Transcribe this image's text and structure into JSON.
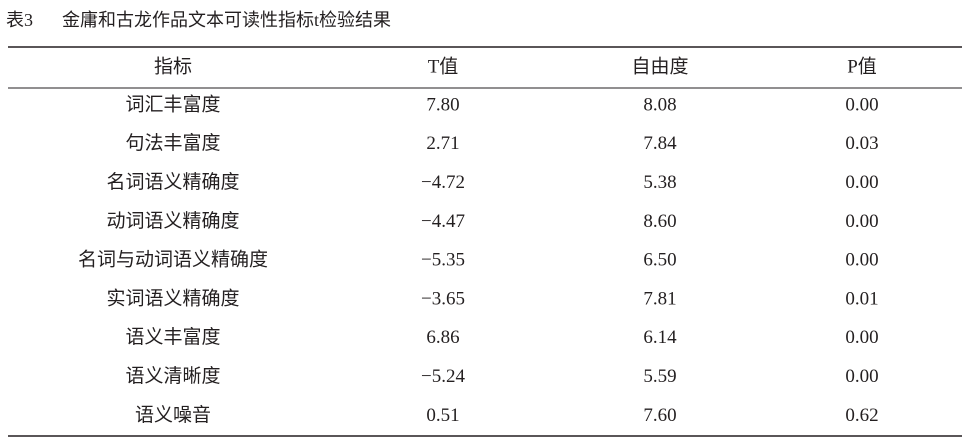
{
  "caption": {
    "number": "表3",
    "title": "金庸和古龙作品文本可读性指标t检验结果"
  },
  "table": {
    "header": [
      "指标",
      "T值",
      "自由度",
      "P值"
    ],
    "rows": [
      [
        "词汇丰富度",
        "7.80",
        "8.08",
        "0.00"
      ],
      [
        "句法丰富度",
        "2.71",
        "7.84",
        "0.03"
      ],
      [
        "名词语义精确度",
        "−4.72",
        "5.38",
        "0.00"
      ],
      [
        "动词语义精确度",
        "−4.47",
        "8.60",
        "0.00"
      ],
      [
        "名词与动词语义精确度",
        "−5.35",
        "6.50",
        "0.00"
      ],
      [
        "实词语义精确度",
        "−3.65",
        "7.81",
        "0.01"
      ],
      [
        "语义丰富度",
        "6.86",
        "6.14",
        "0.00"
      ],
      [
        "语义清晰度",
        "−5.24",
        "5.59",
        "0.00"
      ],
      [
        "语义噪音",
        "0.51",
        "7.60",
        "0.62"
      ]
    ]
  }
}
